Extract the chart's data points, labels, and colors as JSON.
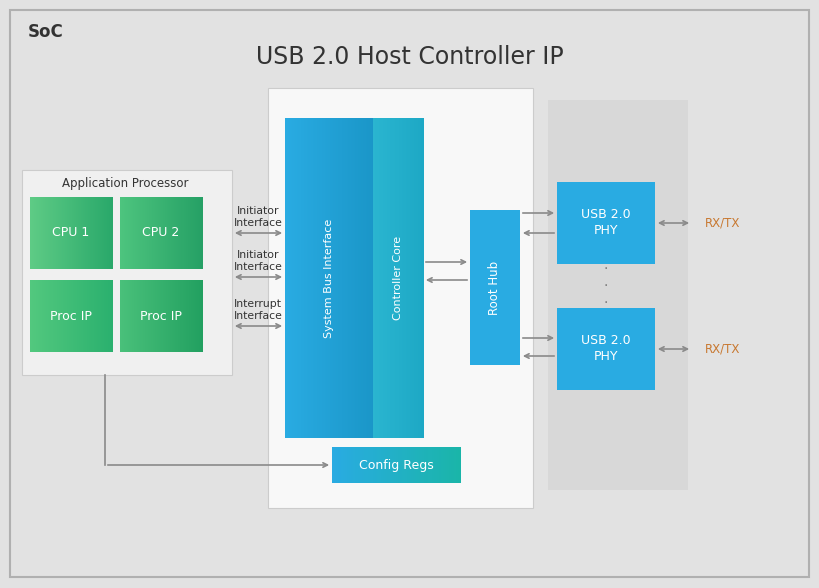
{
  "title": "USB 2.0 Host Controller IP",
  "bg_color": "#e2e2e2",
  "soc_label": "SoC",
  "app_proc_label": "Application Processor",
  "cpu_labels": [
    "CPU 1",
    "CPU 2",
    "Proc IP",
    "Proc IP"
  ],
  "sysbus_blue_left": "#29abe2",
  "sysbus_blue_right": "#00a9ce",
  "ctrl_core_color": "#1a8fc1",
  "root_hub_color": "#29abe2",
  "phy_color": "#29abe2",
  "cfg_color_left": "#29abe2",
  "cfg_color_right": "#1ab5a8",
  "rxtx_color": "#c87830",
  "arrow_color": "#8a8a8a",
  "white_panel_bg": "#f8f8f8",
  "app_proc_bg": "#f0f0f0",
  "phy_col_bg": "#e0e0e0",
  "text_white": "#ffffff",
  "text_dark": "#333333",
  "title_fs": 17,
  "cpu_green_tl": "#4bbf7a",
  "cpu_green_br": "#3cb87e"
}
